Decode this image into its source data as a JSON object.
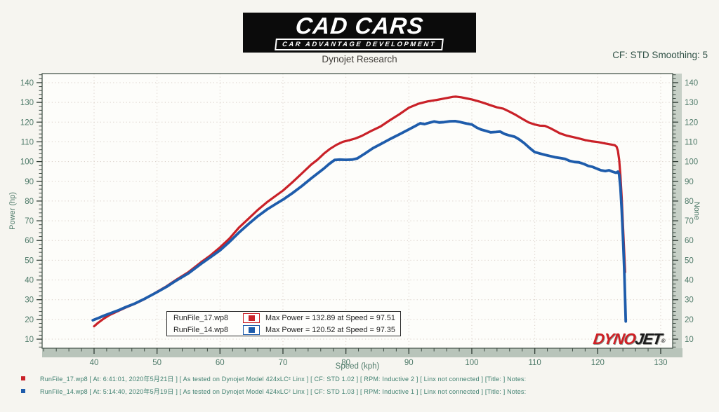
{
  "header": {
    "brand_title": "CAD CARS",
    "brand_subtitle": "CAR ADVANTAGE DEVELOPMENT",
    "app_title": "Dynojet Research",
    "cf_smoothing": "CF: STD Smoothing: 5"
  },
  "branding": {
    "dynojet_part1": "DYNO",
    "dynojet_part2": "JET",
    "dynojet_reg": "®"
  },
  "chart_data": {
    "type": "line",
    "xlabel": "Speed (kph)",
    "ylabel_left": "Power (hp)",
    "ylabel_right": "None",
    "xlim": [
      31.75,
      131.9
    ],
    "ylim": [
      5.4,
      144.6
    ],
    "x_ticks": [
      40,
      50,
      60,
      70,
      80,
      90,
      100,
      110,
      120,
      130
    ],
    "y_ticks": [
      10,
      20,
      30,
      40,
      50,
      60,
      70,
      80,
      90,
      100,
      110,
      120,
      130,
      140
    ],
    "x_minor_step": 2,
    "y_minor_step": 2,
    "grid": "dotted",
    "legend_position": "bottom-center",
    "series": [
      {
        "name": "RunFile_17.wp8",
        "color": "#c92128",
        "max_power": 132.89,
        "max_speed": 97.51,
        "points": [
          [
            40,
            16.5
          ],
          [
            40.6,
            18.2
          ],
          [
            41.5,
            20.3
          ],
          [
            42.5,
            22.3
          ],
          [
            44,
            24.5
          ],
          [
            45,
            26
          ],
          [
            46.5,
            28
          ],
          [
            48,
            30.3
          ],
          [
            50,
            34
          ],
          [
            51.5,
            36.8
          ],
          [
            53,
            40
          ],
          [
            55,
            44
          ],
          [
            57,
            49
          ],
          [
            58.5,
            52.5
          ],
          [
            60,
            56.5
          ],
          [
            61.5,
            61
          ],
          [
            63,
            66.5
          ],
          [
            64.5,
            71
          ],
          [
            66,
            75.5
          ],
          [
            67.5,
            79.5
          ],
          [
            69,
            83
          ],
          [
            70,
            85.3
          ],
          [
            71.5,
            89.5
          ],
          [
            73,
            94
          ],
          [
            74.5,
            98.5
          ],
          [
            75.5,
            101
          ],
          [
            76.5,
            104
          ],
          [
            77.5,
            106.5
          ],
          [
            78.5,
            108.5
          ],
          [
            79.5,
            110
          ],
          [
            80.5,
            110.8
          ],
          [
            81.5,
            111.7
          ],
          [
            82.5,
            113
          ],
          [
            84,
            115.5
          ],
          [
            85.5,
            117.8
          ],
          [
            87,
            121
          ],
          [
            88.5,
            124
          ],
          [
            90,
            127.3
          ],
          [
            91.5,
            129.3
          ],
          [
            93,
            130.5
          ],
          [
            94.5,
            131.3
          ],
          [
            96,
            132.2
          ],
          [
            97,
            132.8
          ],
          [
            97.5,
            132.9
          ],
          [
            98.3,
            132.6
          ],
          [
            99.2,
            132
          ],
          [
            100,
            131.5
          ],
          [
            101,
            130.6
          ],
          [
            102,
            129.6
          ],
          [
            103,
            128.5
          ],
          [
            104,
            127.5
          ],
          [
            105,
            126.8
          ],
          [
            106,
            125.3
          ],
          [
            107,
            123.6
          ],
          [
            108,
            121.7
          ],
          [
            109,
            119.9
          ],
          [
            110,
            118.8
          ],
          [
            110.8,
            118.2
          ],
          [
            111.6,
            118.1
          ],
          [
            112.4,
            117
          ],
          [
            113.2,
            115.7
          ],
          [
            114,
            114.3
          ],
          [
            115,
            113.2
          ],
          [
            116,
            112.5
          ],
          [
            117,
            111.7
          ],
          [
            118,
            110.9
          ],
          [
            119,
            110.3
          ],
          [
            120,
            109.9
          ],
          [
            121,
            109.3
          ],
          [
            122,
            108.7
          ],
          [
            122.7,
            108.3
          ],
          [
            123,
            107.5
          ],
          [
            123.2,
            105.5
          ],
          [
            123.4,
            101
          ],
          [
            123.6,
            93
          ],
          [
            123.8,
            82
          ],
          [
            124,
            68
          ],
          [
            124.2,
            54
          ],
          [
            124.35,
            44
          ]
        ]
      },
      {
        "name": "RunFile_14.wp8",
        "color": "#1e5cab",
        "max_power": 120.52,
        "max_speed": 97.35,
        "points": [
          [
            39.8,
            19.6
          ],
          [
            40.6,
            20.6
          ],
          [
            41.5,
            21.8
          ],
          [
            42.5,
            23
          ],
          [
            44,
            24.8
          ],
          [
            45,
            26.2
          ],
          [
            46.5,
            28.1
          ],
          [
            48,
            30.4
          ],
          [
            50,
            33.8
          ],
          [
            51.5,
            36.5
          ],
          [
            53,
            39.6
          ],
          [
            55,
            43.4
          ],
          [
            57,
            48.2
          ],
          [
            58.5,
            51.6
          ],
          [
            60,
            55
          ],
          [
            61.5,
            59.3
          ],
          [
            63,
            64
          ],
          [
            64.5,
            68.3
          ],
          [
            66,
            72.3
          ],
          [
            67.5,
            75.8
          ],
          [
            69,
            78.8
          ],
          [
            70,
            80.7
          ],
          [
            71.5,
            84
          ],
          [
            73,
            87.6
          ],
          [
            74.5,
            91.5
          ],
          [
            75.5,
            94
          ],
          [
            76.5,
            96.5
          ],
          [
            77.3,
            98.7
          ],
          [
            78.2,
            100.8
          ],
          [
            79,
            101
          ],
          [
            80,
            100.9
          ],
          [
            81,
            101
          ],
          [
            81.8,
            101.6
          ],
          [
            83,
            104
          ],
          [
            84.3,
            106.8
          ],
          [
            85.6,
            109
          ],
          [
            87,
            111.4
          ],
          [
            88.5,
            113.8
          ],
          [
            90,
            116.3
          ],
          [
            91,
            118
          ],
          [
            91.8,
            119.4
          ],
          [
            92.5,
            119
          ],
          [
            93.3,
            119.7
          ],
          [
            94,
            120.3
          ],
          [
            94.8,
            119.8
          ],
          [
            95.6,
            120
          ],
          [
            96.5,
            120.4
          ],
          [
            97.35,
            120.5
          ],
          [
            98.2,
            120
          ],
          [
            99,
            119.4
          ],
          [
            100,
            118.8
          ],
          [
            100.8,
            117.2
          ],
          [
            101.5,
            116.2
          ],
          [
            102.3,
            115.5
          ],
          [
            103,
            114.8
          ],
          [
            103.8,
            115
          ],
          [
            104.5,
            115.2
          ],
          [
            105.2,
            114
          ],
          [
            106,
            113.2
          ],
          [
            106.8,
            112.6
          ],
          [
            107.5,
            111.3
          ],
          [
            108.3,
            109.4
          ],
          [
            109.2,
            106.8
          ],
          [
            110,
            104.8
          ],
          [
            110.8,
            104.1
          ],
          [
            111.6,
            103.4
          ],
          [
            112.4,
            102.8
          ],
          [
            113.2,
            102.2
          ],
          [
            114,
            101.8
          ],
          [
            114.8,
            101.4
          ],
          [
            115.5,
            100.4
          ],
          [
            116.3,
            99.8
          ],
          [
            117,
            99.6
          ],
          [
            117.8,
            98.8
          ],
          [
            118.5,
            97.8
          ],
          [
            119.2,
            97.3
          ],
          [
            119.8,
            96.5
          ],
          [
            120.5,
            95.6
          ],
          [
            121.2,
            95.2
          ],
          [
            121.8,
            95.6
          ],
          [
            122.4,
            94.8
          ],
          [
            122.9,
            94.3
          ],
          [
            123.2,
            94.9
          ],
          [
            123.4,
            93.5
          ],
          [
            123.6,
            87
          ],
          [
            123.8,
            76
          ],
          [
            124,
            62
          ],
          [
            124.2,
            46
          ],
          [
            124.35,
            30
          ],
          [
            124.45,
            19
          ]
        ]
      }
    ]
  },
  "legend": {
    "rows": [
      {
        "name": "RunFile_17.wp8",
        "value": "Max Power = 132.89 at Speed = 97.51",
        "color": "#c92128"
      },
      {
        "name": "RunFile_14.wp8",
        "value": "Max Power = 120.52 at Speed = 97.35",
        "color": "#1e5cab"
      }
    ]
  },
  "footer": {
    "lines": [
      {
        "color": "#c92128",
        "text": "RunFile_17.wp8  [  At:  6:41:01,  2020年5月21日  ] [ As tested on Dynojet Model 424xLC² Linx ]  [ CF: STD 1.02 ] [ RPM: Inductive 2 ]  [ Linx not connected ]  [Title:  ]   Notes:"
      },
      {
        "color": "#1e5cab",
        "text": "RunFile_14.wp8  [  At:  5:14:40,  2020年5月19日  ] [ As tested on Dynojet Model 424xLC² Linx ]  [ CF: STD 1.03 ] [ RPM: Inductive 1 ]  [ Linx not connected ]  [Title:  ]   Notes:"
      }
    ]
  }
}
